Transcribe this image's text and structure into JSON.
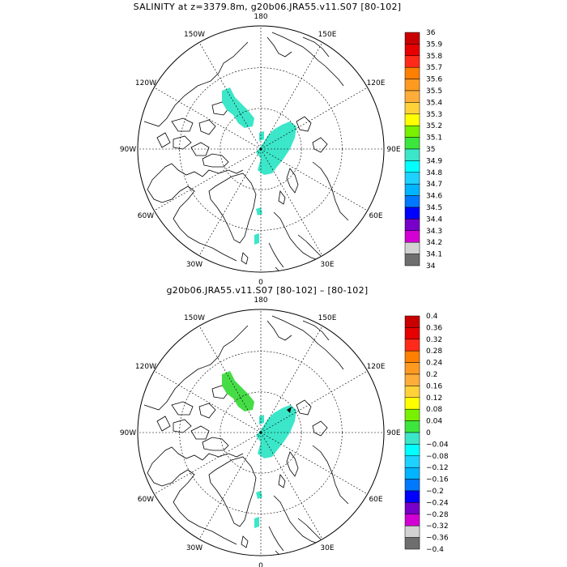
{
  "panels": [
    {
      "id": "top",
      "title": "SALINITY at z=3379.8m, g20b06.JRA55.v11.S07 [80-102]",
      "longitude_labels": [
        "180",
        "150E",
        "120E",
        "90E",
        "60E",
        "30E",
        "0",
        "30W",
        "60W",
        "90W",
        "120W",
        "150W"
      ],
      "colorbar": {
        "labels": [
          "36",
          "35.9",
          "35.8",
          "35.7",
          "35.6",
          "35.5",
          "35.4",
          "35.3",
          "35.2",
          "35.1",
          "35",
          "34.9",
          "34.8",
          "34.7",
          "34.6",
          "34.5",
          "34.4",
          "34.3",
          "34.2",
          "34.1",
          "34"
        ]
      },
      "fields": {
        "dominant_value_range": "34.9-35",
        "dominant_color": "#3ce6c8"
      }
    },
    {
      "id": "bottom",
      "title": "g20b06.JRA55.v11.S07 [80-102] –  [80-102]",
      "longitude_labels": [
        "180",
        "150E",
        "120E",
        "90E",
        "60E",
        "30E",
        "0",
        "30W",
        "60W",
        "90W",
        "120W",
        "150W"
      ],
      "colorbar": {
        "labels": [
          "0.4",
          "0.36",
          "0.32",
          "0.28",
          "0.24",
          "0.2",
          "0.16",
          "0.12",
          "0.08",
          "0.04",
          "0",
          "−0.04",
          "−0.08",
          "−0.12",
          "−0.16",
          "−0.2",
          "−0.24",
          "−0.28",
          "−0.32",
          "−0.36",
          "−0.4"
        ]
      },
      "fields": {
        "canada_basin_value_range": "0-0.04",
        "canada_basin_color": "#46dc46",
        "eurasian_basin_value_range": "-0.04-0",
        "eurasian_basin_color": "#3ce6c8"
      }
    }
  ],
  "colorbar_colors": [
    "#c80000",
    "#e60000",
    "#ff2a1a",
    "#ff7f00",
    "#ff9a20",
    "#ffad3a",
    "#ffd23a",
    "#ffff00",
    "#78f000",
    "#3ce63c",
    "#3ce6c8",
    "#00ffff",
    "#1ed2ff",
    "#00b4ff",
    "#0078ff",
    "#0000ff",
    "#7800c8",
    "#d200d2",
    "#d2d2d2",
    "#6e6e6e"
  ]
}
